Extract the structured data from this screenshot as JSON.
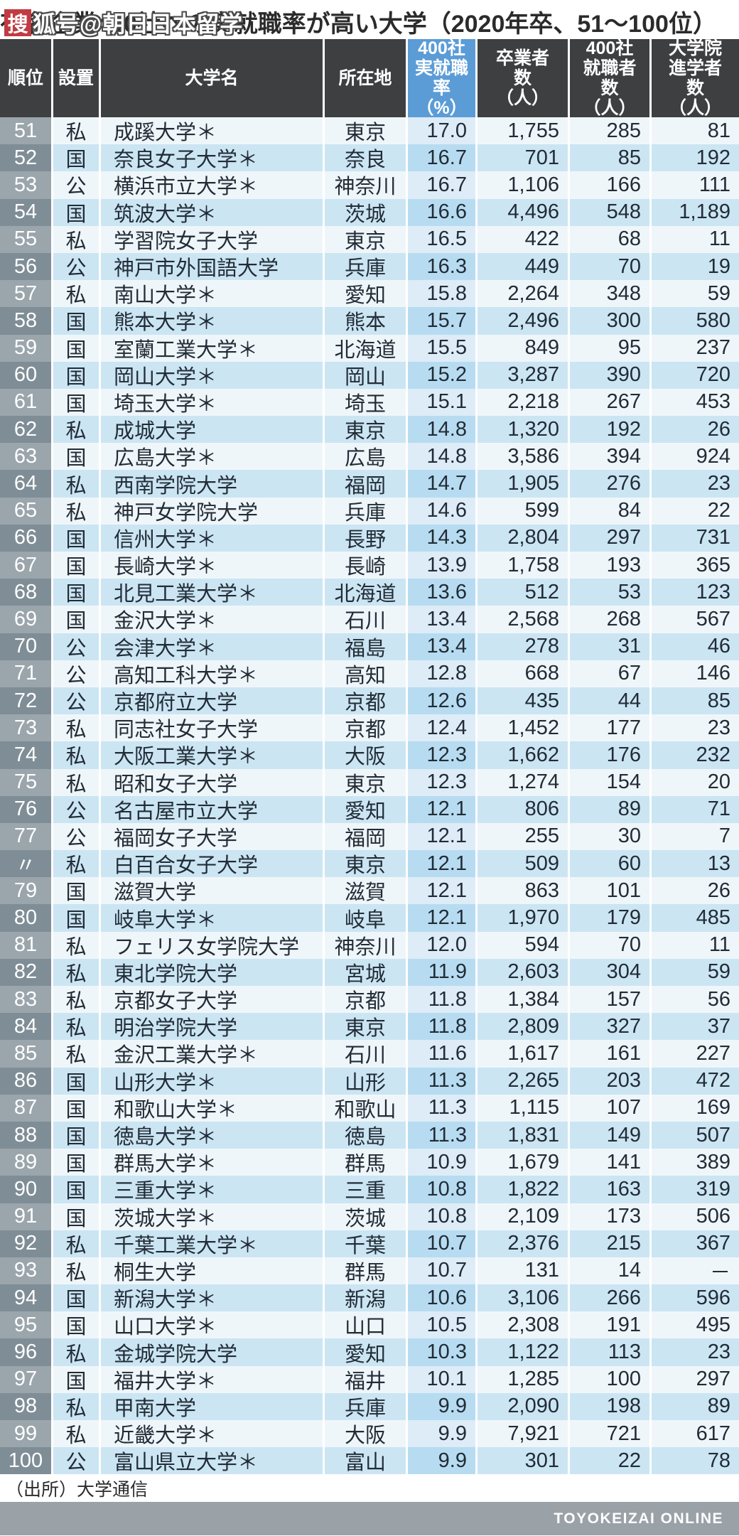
{
  "watermark": {
    "box_char": "搜",
    "text": "狐号@朝日日本留学"
  },
  "source": "（出所）大学通信",
  "footer": "TOYOKEIZAI ONLINE",
  "colors": {
    "title_text": "#2b2b2b",
    "header_bg": "#3e3f41",
    "header_text": "#ffffff",
    "rate_header_bg": "#5b9cd6",
    "rank_bg_light": "#9ba5ac",
    "rank_bg_dark": "#7f8d96",
    "row_bg_light": "#eff6fa",
    "row_bg_dark": "#cbe5f3",
    "rate_bg_light": "#ddecf7",
    "rate_bg_dark": "#b7dcf1",
    "cell_text": "#222c36",
    "watermark_red": "#c13b42",
    "footer_bg": "#9aa1a7",
    "footer_text": "#ffffff"
  },
  "chart_data": {
    "type": "table",
    "title": "有名企業400社への実就職率が高い大学（2020年卒、51～100位）",
    "headers": {
      "rank": "順位",
      "est": "設置",
      "name": "大学名",
      "pref": "所在地",
      "rate": "400社\n実就職\n率\n（%）",
      "grads": "卒業者\n数\n（人）",
      "employed": "400社\n就職者\n数\n（人）",
      "gradschool": "大学院\n進学者\n数\n（人）"
    },
    "columns": [
      "順位",
      "設置",
      "大学名",
      "所在地",
      "400社実就職率（%）",
      "卒業者数（人）",
      "400社就職者数（人）",
      "大学院進学者数（人）"
    ],
    "rows": [
      [
        "51",
        "私",
        "成蹊大学＊",
        "東京",
        "17.0",
        "1,755",
        "285",
        "81"
      ],
      [
        "52",
        "国",
        "奈良女子大学＊",
        "奈良",
        "16.7",
        "701",
        "85",
        "192"
      ],
      [
        "53",
        "公",
        "横浜市立大学＊",
        "神奈川",
        "16.7",
        "1,106",
        "166",
        "111"
      ],
      [
        "54",
        "国",
        "筑波大学＊",
        "茨城",
        "16.6",
        "4,496",
        "548",
        "1,189"
      ],
      [
        "55",
        "私",
        "学習院女子大学",
        "東京",
        "16.5",
        "422",
        "68",
        "11"
      ],
      [
        "56",
        "公",
        "神戸市外国語大学",
        "兵庫",
        "16.3",
        "449",
        "70",
        "19"
      ],
      [
        "57",
        "私",
        "南山大学＊",
        "愛知",
        "15.8",
        "2,264",
        "348",
        "59"
      ],
      [
        "58",
        "国",
        "熊本大学＊",
        "熊本",
        "15.7",
        "2,496",
        "300",
        "580"
      ],
      [
        "59",
        "国",
        "室蘭工業大学＊",
        "北海道",
        "15.5",
        "849",
        "95",
        "237"
      ],
      [
        "60",
        "国",
        "岡山大学＊",
        "岡山",
        "15.2",
        "3,287",
        "390",
        "720"
      ],
      [
        "61",
        "国",
        "埼玉大学＊",
        "埼玉",
        "15.1",
        "2,218",
        "267",
        "453"
      ],
      [
        "62",
        "私",
        "成城大学",
        "東京",
        "14.8",
        "1,320",
        "192",
        "26"
      ],
      [
        "63",
        "国",
        "広島大学＊",
        "広島",
        "14.8",
        "3,586",
        "394",
        "924"
      ],
      [
        "64",
        "私",
        "西南学院大学",
        "福岡",
        "14.7",
        "1,905",
        "276",
        "23"
      ],
      [
        "65",
        "私",
        "神戸女学院大学",
        "兵庫",
        "14.6",
        "599",
        "84",
        "22"
      ],
      [
        "66",
        "国",
        "信州大学＊",
        "長野",
        "14.3",
        "2,804",
        "297",
        "731"
      ],
      [
        "67",
        "国",
        "長崎大学＊",
        "長崎",
        "13.9",
        "1,758",
        "193",
        "365"
      ],
      [
        "68",
        "国",
        "北見工業大学＊",
        "北海道",
        "13.6",
        "512",
        "53",
        "123"
      ],
      [
        "69",
        "国",
        "金沢大学＊",
        "石川",
        "13.4",
        "2,568",
        "268",
        "567"
      ],
      [
        "70",
        "公",
        "会津大学＊",
        "福島",
        "13.4",
        "278",
        "31",
        "46"
      ],
      [
        "71",
        "公",
        "高知工科大学＊",
        "高知",
        "12.8",
        "668",
        "67",
        "146"
      ],
      [
        "72",
        "公",
        "京都府立大学",
        "京都",
        "12.6",
        "435",
        "44",
        "85"
      ],
      [
        "73",
        "私",
        "同志社女子大学",
        "京都",
        "12.4",
        "1,452",
        "177",
        "23"
      ],
      [
        "74",
        "私",
        "大阪工業大学＊",
        "大阪",
        "12.3",
        "1,662",
        "176",
        "232"
      ],
      [
        "75",
        "私",
        "昭和女子大学",
        "東京",
        "12.3",
        "1,274",
        "154",
        "20"
      ],
      [
        "76",
        "公",
        "名古屋市立大学",
        "愛知",
        "12.1",
        "806",
        "89",
        "71"
      ],
      [
        "77",
        "公",
        "福岡女子大学",
        "福岡",
        "12.1",
        "255",
        "30",
        "7"
      ],
      [
        "〃",
        "私",
        "白百合女子大学",
        "東京",
        "12.1",
        "509",
        "60",
        "13"
      ],
      [
        "79",
        "国",
        "滋賀大学",
        "滋賀",
        "12.1",
        "863",
        "101",
        "26"
      ],
      [
        "80",
        "国",
        "岐阜大学＊",
        "岐阜",
        "12.1",
        "1,970",
        "179",
        "485"
      ],
      [
        "81",
        "私",
        "フェリス女学院大学",
        "神奈川",
        "12.0",
        "594",
        "70",
        "11"
      ],
      [
        "82",
        "私",
        "東北学院大学",
        "宮城",
        "11.9",
        "2,603",
        "304",
        "59"
      ],
      [
        "83",
        "私",
        "京都女子大学",
        "京都",
        "11.8",
        "1,384",
        "157",
        "56"
      ],
      [
        "84",
        "私",
        "明治学院大学",
        "東京",
        "11.8",
        "2,809",
        "327",
        "37"
      ],
      [
        "85",
        "私",
        "金沢工業大学＊",
        "石川",
        "11.6",
        "1,617",
        "161",
        "227"
      ],
      [
        "86",
        "国",
        "山形大学＊",
        "山形",
        "11.3",
        "2,265",
        "203",
        "472"
      ],
      [
        "87",
        "国",
        "和歌山大学＊",
        "和歌山",
        "11.3",
        "1,115",
        "107",
        "169"
      ],
      [
        "88",
        "国",
        "徳島大学＊",
        "徳島",
        "11.3",
        "1,831",
        "149",
        "507"
      ],
      [
        "89",
        "国",
        "群馬大学＊",
        "群馬",
        "10.9",
        "1,679",
        "141",
        "389"
      ],
      [
        "90",
        "国",
        "三重大学＊",
        "三重",
        "10.8",
        "1,822",
        "163",
        "319"
      ],
      [
        "91",
        "国",
        "茨城大学＊",
        "茨城",
        "10.8",
        "2,109",
        "173",
        "506"
      ],
      [
        "92",
        "私",
        "千葉工業大学＊",
        "千葉",
        "10.7",
        "2,376",
        "215",
        "367"
      ],
      [
        "93",
        "私",
        "桐生大学",
        "群馬",
        "10.7",
        "131",
        "14",
        "－"
      ],
      [
        "94",
        "国",
        "新潟大学＊",
        "新潟",
        "10.6",
        "3,106",
        "266",
        "596"
      ],
      [
        "95",
        "国",
        "山口大学＊",
        "山口",
        "10.5",
        "2,308",
        "191",
        "495"
      ],
      [
        "96",
        "私",
        "金城学院大学",
        "愛知",
        "10.3",
        "1,122",
        "113",
        "23"
      ],
      [
        "97",
        "国",
        "福井大学＊",
        "福井",
        "10.1",
        "1,285",
        "100",
        "297"
      ],
      [
        "98",
        "私",
        "甲南大学",
        "兵庫",
        "9.9",
        "2,090",
        "198",
        "89"
      ],
      [
        "99",
        "私",
        "近畿大学＊",
        "大阪",
        "9.9",
        "7,921",
        "721",
        "617"
      ],
      [
        "100",
        "公",
        "富山県立大学＊",
        "富山",
        "9.9",
        "301",
        "22",
        "78"
      ]
    ]
  }
}
